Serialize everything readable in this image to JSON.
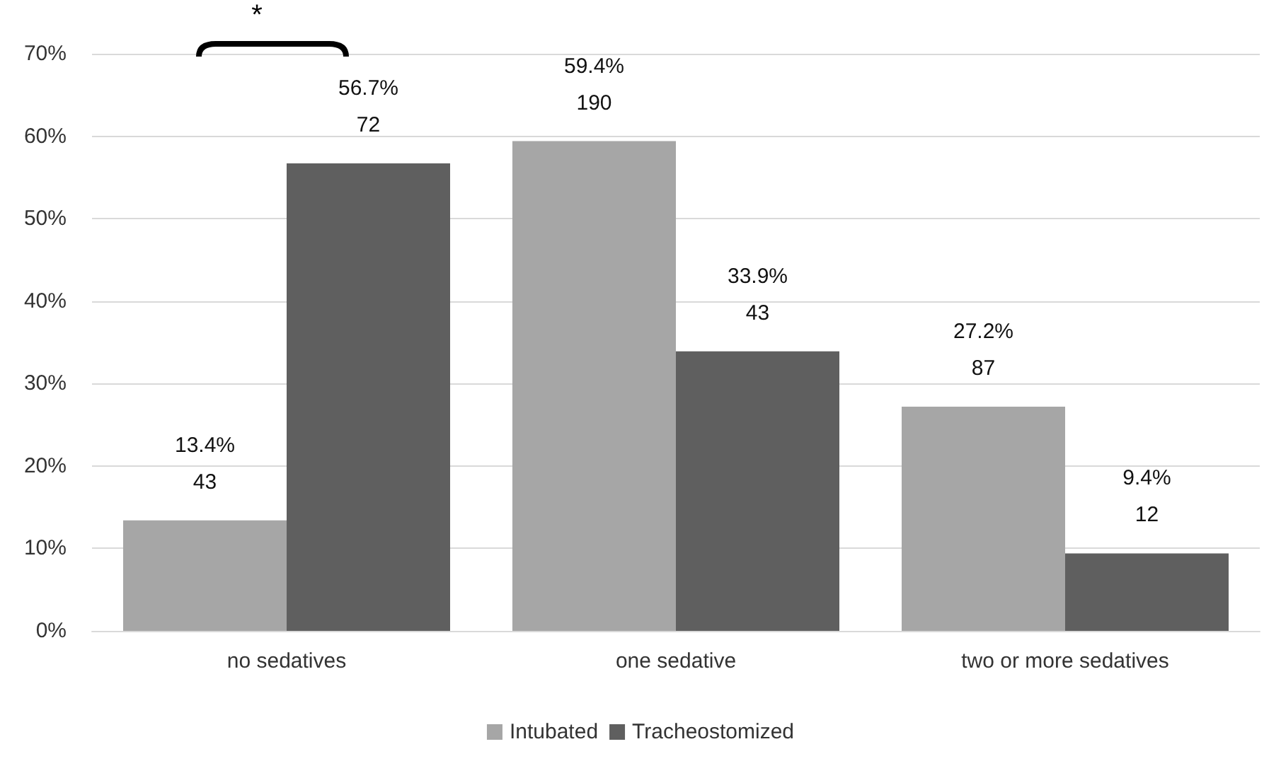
{
  "chart_data": {
    "type": "bar",
    "categories": [
      "no sedatives",
      "one sedative",
      "two or more sedatives"
    ],
    "series": [
      {
        "name": "Intubated",
        "color": "#a6a6a6",
        "values": [
          13.4,
          59.4,
          27.2
        ],
        "value_labels": [
          "13.4%\n43",
          "59.4%\n190",
          "27.2%\n87"
        ]
      },
      {
        "name": "Tracheostomized",
        "color": "#5f5f5f",
        "values": [
          56.7,
          33.9,
          9.4
        ],
        "value_labels": [
          "56.7%\n72",
          "33.9%\n43",
          "9.4%\n12"
        ]
      }
    ],
    "ylim": [
      0,
      70
    ],
    "yticks": [
      {
        "value": 0,
        "label": "0%"
      },
      {
        "value": 10,
        "label": "10%"
      },
      {
        "value": 20,
        "label": "20%"
      },
      {
        "value": 30,
        "label": "30%"
      },
      {
        "value": 40,
        "label": "40%"
      },
      {
        "value": 50,
        "label": "50%"
      },
      {
        "value": 60,
        "label": "60%"
      },
      {
        "value": 70,
        "label": "70%"
      }
    ],
    "grid": "y",
    "legend": "bottom",
    "annotations": [
      "*"
    ]
  }
}
